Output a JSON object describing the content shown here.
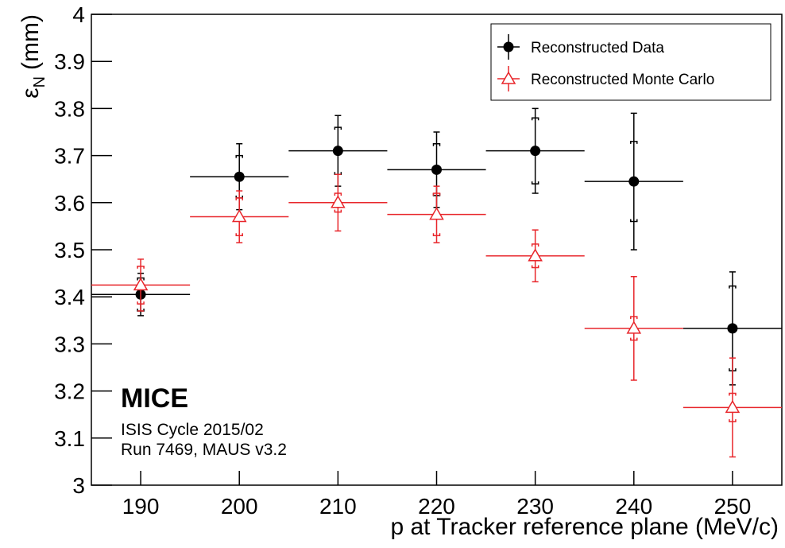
{
  "chart_data": {
    "type": "scatter",
    "xlabel": "p at Tracker reference plane (MeV/c)",
    "ylabel": {
      "symbol": "ε",
      "subscript": "N",
      "unit": "(mm)"
    },
    "annotations": [
      "MICE",
      "ISIS Cycle 2015/02",
      "Run 7469, MAUS v3.2"
    ],
    "xlim": [
      185,
      255
    ],
    "ylim": [
      3,
      4
    ],
    "xticks": [
      190,
      200,
      210,
      220,
      230,
      240,
      250
    ],
    "yticks": [
      3,
      3.1,
      3.2,
      3.3,
      3.4,
      3.5,
      3.6,
      3.7,
      3.8,
      3.9,
      4
    ],
    "legend": "top-right",
    "series": [
      {
        "name": "Reconstructed Data",
        "color": "#000000",
        "marker": "circle",
        "x": [
          190,
          200,
          210,
          220,
          230,
          240,
          250
        ],
        "values": [
          3.405,
          3.655,
          3.71,
          3.67,
          3.71,
          3.645,
          3.333
        ],
        "xerr": [
          5,
          5,
          5,
          5,
          5,
          5,
          5
        ],
        "errors": [
          0.045,
          0.07,
          0.075,
          0.08,
          0.09,
          0.145,
          0.12
        ],
        "inner_errors": [
          0.035,
          0.045,
          0.05,
          0.055,
          0.07,
          0.085,
          0.09
        ]
      },
      {
        "name": "Reconstructed Monte Carlo",
        "color": "#e8262b",
        "marker": "open-triangle",
        "x": [
          190,
          200,
          210,
          220,
          230,
          240,
          250
        ],
        "values": [
          3.425,
          3.57,
          3.6,
          3.575,
          3.487,
          3.333,
          3.165
        ],
        "xerr": [
          5,
          5,
          5,
          5,
          5,
          5,
          5
        ],
        "errors": [
          0.055,
          0.055,
          0.06,
          0.06,
          0.055,
          0.11,
          0.105
        ],
        "inner_errors": [
          0.04,
          0.04,
          0.02,
          0.045,
          0.025,
          0.025,
          0.03
        ]
      }
    ]
  }
}
